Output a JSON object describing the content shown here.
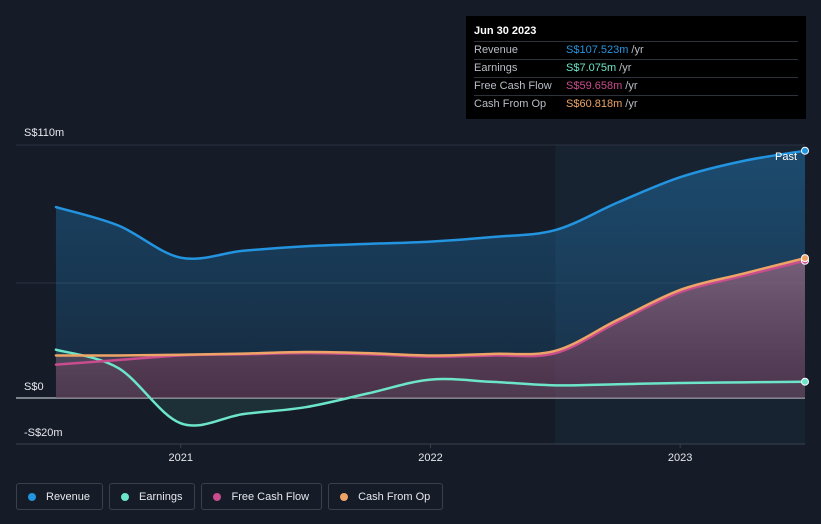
{
  "chart_data": {
    "type": "area",
    "title": "",
    "x_ticks": [
      {
        "label": "2021",
        "x": 2021.0
      },
      {
        "label": "2022",
        "x": 2022.0
      },
      {
        "label": "2023",
        "x": 2023.0
      }
    ],
    "y_labels": [
      {
        "label": "S$110m",
        "value": 110
      },
      {
        "label": "S$0",
        "value": 0
      },
      {
        "label": "-S$20m",
        "value": -20
      }
    ],
    "ylim": [
      -20,
      110
    ],
    "xlim": [
      2020.34,
      2023.5
    ],
    "past_start": 2022.5,
    "past_label": "Past",
    "series": [
      {
        "name": "Revenue",
        "color": "#2394df",
        "x": [
          2020.5,
          2020.75,
          2021.0,
          2021.25,
          2021.5,
          2021.75,
          2022.0,
          2022.25,
          2022.5,
          2022.75,
          2023.0,
          2023.25,
          2023.5
        ],
        "values": [
          83,
          75,
          61,
          64,
          66,
          67,
          68,
          70,
          73,
          85,
          96,
          103,
          107.523
        ]
      },
      {
        "name": "Earnings",
        "color": "#6ce5c8",
        "x": [
          2020.5,
          2020.75,
          2021.0,
          2021.25,
          2021.5,
          2021.75,
          2022.0,
          2022.25,
          2022.5,
          2022.75,
          2023.0,
          2023.25,
          2023.5
        ],
        "values": [
          21,
          13,
          -11,
          -7,
          -4,
          2,
          8,
          7,
          5.5,
          6,
          6.5,
          6.8,
          7.075
        ]
      },
      {
        "name": "Free Cash Flow",
        "color": "#c84c8e",
        "x": [
          2020.5,
          2020.75,
          2021.0,
          2021.25,
          2021.5,
          2021.75,
          2022.0,
          2022.25,
          2022.5,
          2022.75,
          2023.0,
          2023.25,
          2023.5
        ],
        "values": [
          14.5,
          16.5,
          18.5,
          19,
          19.5,
          19,
          18,
          18.5,
          19.5,
          33,
          46,
          53,
          59.658
        ]
      },
      {
        "name": "Cash From Op",
        "color": "#eea467",
        "x": [
          2020.5,
          2020.75,
          2021.0,
          2021.25,
          2021.5,
          2021.75,
          2022.0,
          2022.25,
          2022.5,
          2022.75,
          2023.0,
          2023.25,
          2023.5
        ],
        "values": [
          18.5,
          18.5,
          18.8,
          19.3,
          20,
          19.5,
          18.5,
          19.2,
          20.5,
          34,
          47,
          54,
          60.818
        ]
      }
    ]
  },
  "tooltip": {
    "date": "Jun 30 2023",
    "rows": [
      {
        "name": "Revenue",
        "value": "S$107.523m",
        "unit": "/yr",
        "color": "#2394df"
      },
      {
        "name": "Earnings",
        "value": "S$7.075m",
        "unit": "/yr",
        "color": "#6ce5c8"
      },
      {
        "name": "Free Cash Flow",
        "value": "S$59.658m",
        "unit": "/yr",
        "color": "#c84c8e"
      },
      {
        "name": "Cash From Op",
        "value": "S$60.818m",
        "unit": "/yr",
        "color": "#eea467"
      }
    ]
  },
  "legend": [
    {
      "label": "Revenue",
      "color": "#2394df"
    },
    {
      "label": "Earnings",
      "color": "#6ce5c8"
    },
    {
      "label": "Free Cash Flow",
      "color": "#c84c8e"
    },
    {
      "label": "Cash From Op",
      "color": "#eea467"
    }
  ]
}
